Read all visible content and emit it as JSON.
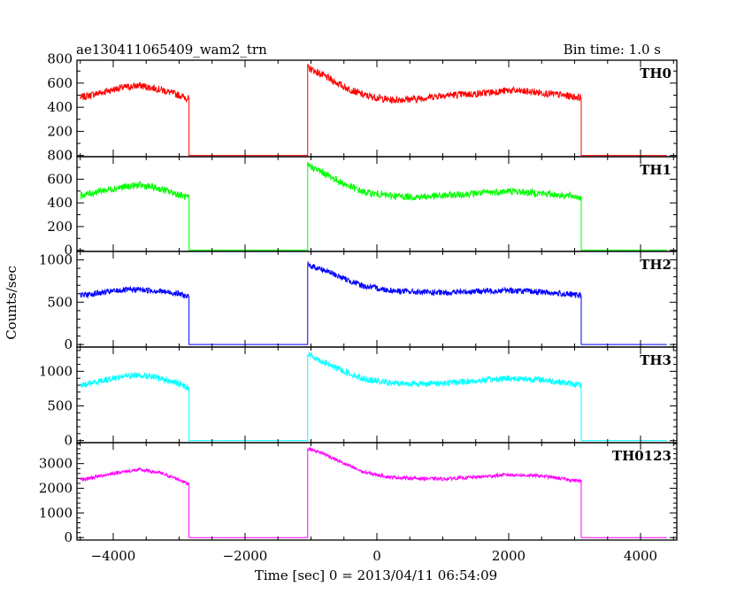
{
  "header": {
    "title": "ae130411065409_wam2_trn",
    "bin_time": "Bin time: 1.0 s"
  },
  "chart_data": {
    "type": "line",
    "xlabel": "Time [sec] 0 = 2013/04/11 06:54:09",
    "ylabel": "Counts/sec",
    "xlim": [
      -4550,
      4550
    ],
    "x_ticks": [
      -4000,
      -2000,
      0,
      2000,
      4000
    ],
    "segments": [
      {
        "start": -4500,
        "end": -2850,
        "active": true
      },
      {
        "start": -2850,
        "end": -1050,
        "active": false
      },
      {
        "start": -1050,
        "end": 3100,
        "active": true
      },
      {
        "start": 3100,
        "end": 4400,
        "active": false
      }
    ],
    "panels": [
      {
        "name": "TH0",
        "color": "#ff0000",
        "ylim": [
          -10,
          790
        ],
        "y_ticks": [
          0,
          200,
          400,
          600,
          800
        ],
        "noise": 30,
        "profile": [
          [
            -4500,
            480
          ],
          [
            -4200,
            520
          ],
          [
            -3900,
            560
          ],
          [
            -3600,
            580
          ],
          [
            -3300,
            550
          ],
          [
            -3000,
            500
          ],
          [
            -2850,
            470
          ],
          [
            -1050,
            730
          ],
          [
            -800,
            660
          ],
          [
            -500,
            570
          ],
          [
            -200,
            500
          ],
          [
            200,
            460
          ],
          [
            600,
            470
          ],
          [
            1000,
            500
          ],
          [
            1500,
            510
          ],
          [
            2000,
            540
          ],
          [
            2500,
            520
          ],
          [
            3100,
            480
          ]
        ]
      },
      {
        "name": "TH1",
        "color": "#00ff00",
        "ylim": [
          -10,
          790
        ],
        "y_ticks": [
          0,
          200,
          400,
          600,
          800
        ],
        "noise": 30,
        "profile": [
          [
            -4500,
            460
          ],
          [
            -4200,
            500
          ],
          [
            -3900,
            530
          ],
          [
            -3600,
            550
          ],
          [
            -3300,
            520
          ],
          [
            -3000,
            470
          ],
          [
            -2850,
            440
          ],
          [
            -1050,
            720
          ],
          [
            -800,
            650
          ],
          [
            -500,
            560
          ],
          [
            -200,
            490
          ],
          [
            200,
            460
          ],
          [
            600,
            450
          ],
          [
            1000,
            460
          ],
          [
            1500,
            480
          ],
          [
            2000,
            500
          ],
          [
            2500,
            480
          ],
          [
            3100,
            450
          ]
        ]
      },
      {
        "name": "TH2",
        "color": "#0000ff",
        "ylim": [
          -30,
          1100
        ],
        "y_ticks": [
          0,
          500,
          1000
        ],
        "noise": 35,
        "profile": [
          [
            -4500,
            580
          ],
          [
            -4200,
            610
          ],
          [
            -3900,
            640
          ],
          [
            -3600,
            650
          ],
          [
            -3300,
            630
          ],
          [
            -3000,
            600
          ],
          [
            -2850,
            560
          ],
          [
            -1050,
            940
          ],
          [
            -800,
            880
          ],
          [
            -500,
            780
          ],
          [
            -200,
            690
          ],
          [
            200,
            640
          ],
          [
            600,
            620
          ],
          [
            1000,
            610
          ],
          [
            1500,
            630
          ],
          [
            2000,
            640
          ],
          [
            2500,
            620
          ],
          [
            3100,
            580
          ]
        ]
      },
      {
        "name": "TH3",
        "color": "#00ffff",
        "ylim": [
          -30,
          1350
        ],
        "y_ticks": [
          0,
          500,
          1000
        ],
        "noise": 45,
        "profile": [
          [
            -4500,
            790
          ],
          [
            -4200,
            860
          ],
          [
            -3900,
            920
          ],
          [
            -3600,
            950
          ],
          [
            -3300,
            900
          ],
          [
            -3000,
            820
          ],
          [
            -2850,
            760
          ],
          [
            -1050,
            1250
          ],
          [
            -800,
            1130
          ],
          [
            -500,
            1000
          ],
          [
            -200,
            890
          ],
          [
            200,
            830
          ],
          [
            600,
            820
          ],
          [
            1000,
            830
          ],
          [
            1500,
            860
          ],
          [
            2000,
            900
          ],
          [
            2500,
            880
          ],
          [
            3100,
            800
          ]
        ]
      },
      {
        "name": "TH0123",
        "color": "#ff00ff",
        "ylim": [
          -100,
          3850
        ],
        "y_ticks": [
          0,
          1000,
          2000,
          3000
        ],
        "noise": 70,
        "profile": [
          [
            -4500,
            2330
          ],
          [
            -4200,
            2500
          ],
          [
            -3900,
            2650
          ],
          [
            -3600,
            2750
          ],
          [
            -3300,
            2630
          ],
          [
            -3000,
            2350
          ],
          [
            -2850,
            2170
          ],
          [
            -1050,
            3620
          ],
          [
            -800,
            3400
          ],
          [
            -500,
            3000
          ],
          [
            -200,
            2650
          ],
          [
            200,
            2450
          ],
          [
            600,
            2400
          ],
          [
            1000,
            2380
          ],
          [
            1500,
            2450
          ],
          [
            2000,
            2550
          ],
          [
            2500,
            2500
          ],
          [
            3100,
            2280
          ]
        ]
      }
    ]
  }
}
